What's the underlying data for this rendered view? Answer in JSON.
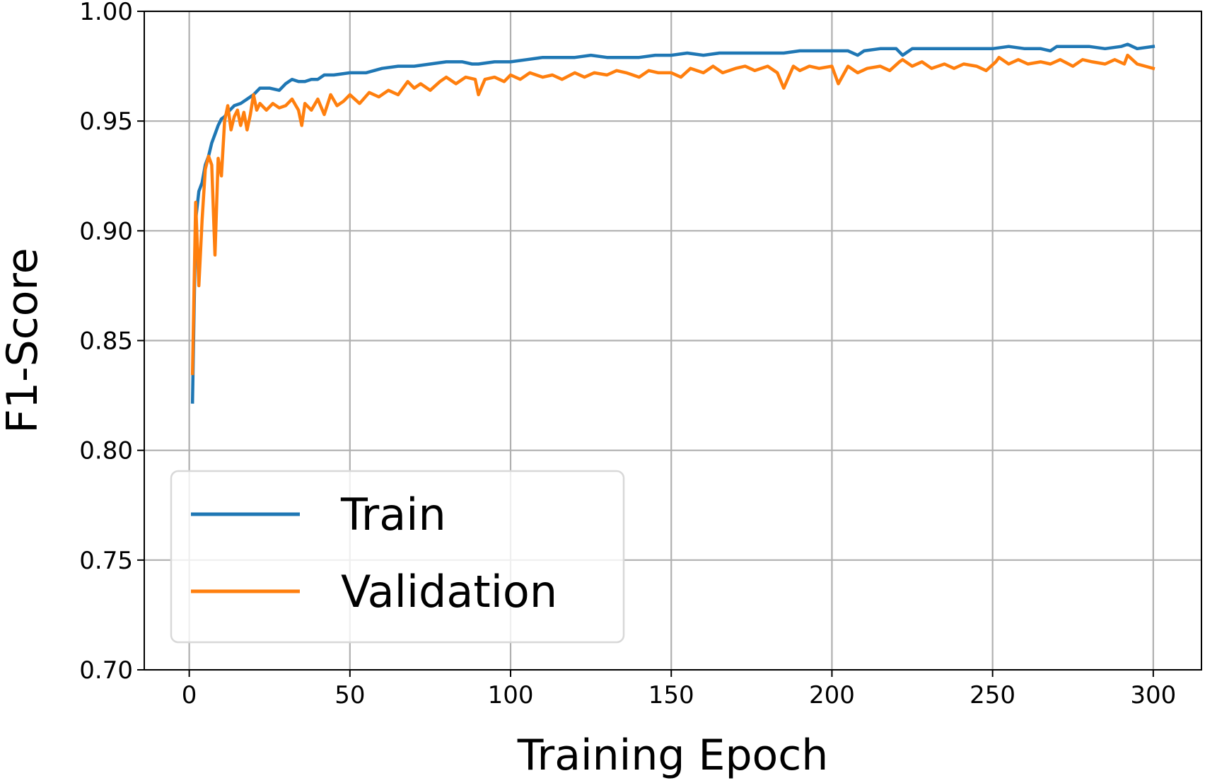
{
  "chart_data": {
    "type": "line",
    "xlabel": "Training Epoch",
    "ylabel": "F1-Score",
    "xlim": [
      -14,
      315
    ],
    "ylim": [
      0.7,
      1.0
    ],
    "xticks": [
      0,
      50,
      100,
      150,
      200,
      250,
      300
    ],
    "xtick_labels": [
      "0",
      "50",
      "100",
      "150",
      "200",
      "250",
      "300"
    ],
    "yticks": [
      0.7,
      0.75,
      0.8,
      0.85,
      0.9,
      0.95,
      1.0
    ],
    "ytick_labels": [
      "0.70",
      "0.75",
      "0.80",
      "0.85",
      "0.90",
      "0.95",
      "1.00"
    ],
    "grid": true,
    "legend_position": "lower-left",
    "series": [
      {
        "name": "Train",
        "color": "#1f77b4",
        "x": [
          1,
          2,
          3,
          4,
          5,
          6,
          7,
          8,
          9,
          10,
          11,
          12,
          14,
          16,
          18,
          20,
          22,
          25,
          28,
          30,
          32,
          34,
          36,
          38,
          40,
          42,
          45,
          50,
          55,
          60,
          65,
          70,
          75,
          80,
          85,
          88,
          90,
          95,
          100,
          105,
          110,
          115,
          120,
          125,
          130,
          135,
          140,
          145,
          150,
          155,
          160,
          165,
          170,
          175,
          180,
          185,
          190,
          195,
          200,
          205,
          208,
          210,
          215,
          220,
          222,
          225,
          230,
          235,
          240,
          245,
          250,
          255,
          260,
          265,
          268,
          270,
          275,
          280,
          285,
          290,
          292,
          295,
          300
        ],
        "y": [
          0.822,
          0.905,
          0.918,
          0.922,
          0.93,
          0.934,
          0.94,
          0.944,
          0.948,
          0.951,
          0.952,
          0.954,
          0.957,
          0.958,
          0.96,
          0.962,
          0.965,
          0.965,
          0.964,
          0.967,
          0.969,
          0.968,
          0.968,
          0.969,
          0.969,
          0.971,
          0.971,
          0.972,
          0.972,
          0.974,
          0.975,
          0.975,
          0.976,
          0.977,
          0.977,
          0.976,
          0.976,
          0.977,
          0.977,
          0.978,
          0.979,
          0.979,
          0.979,
          0.98,
          0.979,
          0.979,
          0.979,
          0.98,
          0.98,
          0.981,
          0.98,
          0.981,
          0.981,
          0.981,
          0.981,
          0.981,
          0.982,
          0.982,
          0.982,
          0.982,
          0.98,
          0.982,
          0.983,
          0.983,
          0.98,
          0.983,
          0.983,
          0.983,
          0.983,
          0.983,
          0.983,
          0.984,
          0.983,
          0.983,
          0.982,
          0.984,
          0.984,
          0.984,
          0.983,
          0.984,
          0.985,
          0.983,
          0.984
        ]
      },
      {
        "name": "Validation",
        "color": "#ff7f0e",
        "x": [
          1,
          2,
          3,
          4,
          5,
          6,
          7,
          8,
          9,
          10,
          11,
          12,
          13,
          14,
          15,
          16,
          17,
          18,
          19,
          20,
          21,
          22,
          24,
          26,
          28,
          30,
          32,
          34,
          35,
          36,
          38,
          40,
          42,
          44,
          46,
          48,
          50,
          53,
          56,
          59,
          62,
          65,
          68,
          70,
          72,
          75,
          78,
          80,
          83,
          86,
          89,
          90,
          92,
          95,
          98,
          100,
          103,
          106,
          110,
          113,
          116,
          120,
          123,
          126,
          130,
          133,
          136,
          140,
          143,
          146,
          150,
          153,
          156,
          160,
          163,
          166,
          170,
          173,
          176,
          180,
          183,
          185,
          188,
          190,
          193,
          196,
          200,
          202,
          205,
          208,
          211,
          215,
          218,
          221,
          222,
          225,
          228,
          231,
          235,
          238,
          241,
          245,
          248,
          251,
          252,
          255,
          258,
          261,
          265,
          268,
          271,
          275,
          278,
          281,
          285,
          288,
          291,
          292,
          295,
          300
        ],
        "y": [
          0.835,
          0.913,
          0.875,
          0.905,
          0.928,
          0.934,
          0.93,
          0.889,
          0.933,
          0.925,
          0.95,
          0.957,
          0.946,
          0.952,
          0.955,
          0.948,
          0.954,
          0.946,
          0.953,
          0.962,
          0.955,
          0.958,
          0.955,
          0.958,
          0.956,
          0.957,
          0.96,
          0.955,
          0.948,
          0.958,
          0.955,
          0.96,
          0.953,
          0.962,
          0.957,
          0.959,
          0.962,
          0.958,
          0.963,
          0.961,
          0.964,
          0.962,
          0.968,
          0.965,
          0.967,
          0.964,
          0.968,
          0.97,
          0.967,
          0.97,
          0.969,
          0.962,
          0.969,
          0.97,
          0.968,
          0.971,
          0.969,
          0.972,
          0.97,
          0.971,
          0.969,
          0.972,
          0.97,
          0.972,
          0.971,
          0.973,
          0.972,
          0.97,
          0.973,
          0.972,
          0.972,
          0.97,
          0.974,
          0.972,
          0.975,
          0.972,
          0.974,
          0.975,
          0.973,
          0.975,
          0.972,
          0.965,
          0.975,
          0.973,
          0.975,
          0.974,
          0.975,
          0.967,
          0.975,
          0.972,
          0.974,
          0.975,
          0.973,
          0.977,
          0.978,
          0.975,
          0.977,
          0.974,
          0.976,
          0.974,
          0.976,
          0.975,
          0.973,
          0.977,
          0.979,
          0.976,
          0.978,
          0.976,
          0.977,
          0.976,
          0.978,
          0.975,
          0.978,
          0.977,
          0.976,
          0.978,
          0.976,
          0.98,
          0.976,
          0.974
        ]
      }
    ]
  }
}
